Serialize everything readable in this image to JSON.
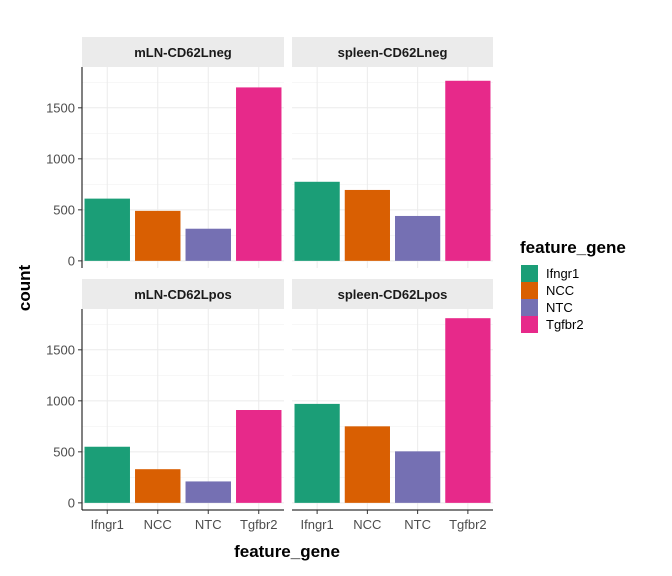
{
  "chart_data": {
    "type": "bar",
    "xlabel": "feature_gene",
    "ylabel": "count",
    "categories": [
      "Ifngr1",
      "NCC",
      "NTC",
      "Tgfbr2"
    ],
    "colors": [
      "#1b9e77",
      "#d95f02",
      "#7570b3",
      "#e7298a"
    ],
    "legend": {
      "title": "feature_gene",
      "position": "right",
      "entries": [
        "Ifngr1",
        "NCC",
        "NTC",
        "Tgfbr2"
      ]
    },
    "grid": true,
    "panels": [
      {
        "title": "mLN-CD62Lneg",
        "values": [
          610,
          490,
          315,
          1700
        ],
        "ylim": [
          -70,
          1900
        ],
        "yticks": [
          0,
          500,
          1000,
          1500
        ]
      },
      {
        "title": "spleen-CD62Lneg",
        "values": [
          775,
          695,
          440,
          1765
        ],
        "ylim": [
          -70,
          1900
        ],
        "yticks": [
          0,
          500,
          1000,
          1500
        ]
      },
      {
        "title": "mLN-CD62Lpos",
        "values": [
          550,
          330,
          210,
          910
        ],
        "ylim": [
          -70,
          1900
        ],
        "yticks": [
          0,
          500,
          1000,
          1500
        ]
      },
      {
        "title": "spleen-CD62Lpos",
        "values": [
          970,
          750,
          505,
          1810
        ],
        "ylim": [
          -70,
          1900
        ],
        "yticks": [
          0,
          500,
          1000,
          1500
        ]
      }
    ]
  }
}
